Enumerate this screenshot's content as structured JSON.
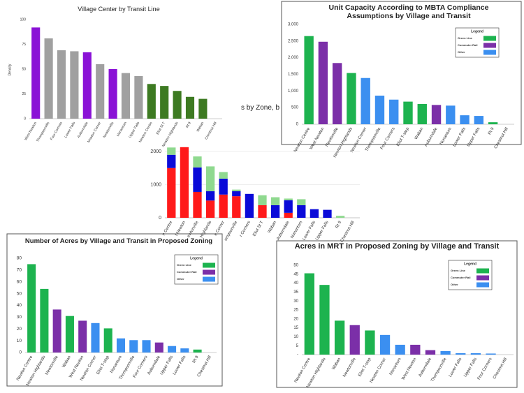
{
  "chart_data": [
    {
      "type": "bar",
      "title": "Village Center by Transit Line",
      "y_label": "Density",
      "categories": [
        "West Newton",
        "Thompsonville",
        "Four Corners",
        "Lower Falls",
        "Auburndale",
        "Newton Corner",
        "Newtonville",
        "Nonantum",
        "Upper Falls",
        "Newton Centre",
        "Eliot St T",
        "Newton Highlands",
        "Rt 9",
        "Waban",
        "Chestnut Hill"
      ],
      "values": [
        92,
        81,
        69,
        68,
        67,
        55,
        50,
        46,
        43,
        35,
        33,
        28,
        22,
        20,
        null
      ],
      "colors": [
        "#8a12d6",
        "#a0a0a0",
        "#a0a0a0",
        "#a0a0a0",
        "#8a12d6",
        "#a0a0a0",
        "#8a12d6",
        "#a0a0a0",
        "#a0a0a0",
        "#3d7a22",
        "#3d7a22",
        "#3d7a22",
        "#3d7a22",
        "#3d7a22",
        null
      ],
      "ylim": [
        0,
        100
      ],
      "yticks": [
        0,
        25,
        50,
        75,
        100
      ],
      "grid": false
    },
    {
      "type": "bar",
      "title": "Unit Capacity According to MBTA Compliance Assumptions by Village and Transit",
      "categories": [
        "Newton Centre",
        "West Newton",
        "Newtonville",
        "Newton Highlands",
        "Newton Corner",
        "Thompsonville",
        "Four Corners",
        "Eliot T-stop",
        "Waban",
        "Auburndale",
        "Nonantum",
        "Lower Falls",
        "Upper Falls",
        "Rt 9",
        "Chestnut Hill"
      ],
      "values": [
        2650,
        2480,
        1840,
        1540,
        1390,
        860,
        740,
        680,
        610,
        580,
        560,
        270,
        250,
        60,
        null
      ],
      "colors": [
        "#1db34f",
        "#7b2fa8",
        "#7b2fa8",
        "#1db34f",
        "#3b8ff0",
        "#3b8ff0",
        "#3b8ff0",
        "#1db34f",
        "#1db34f",
        "#7b2fa8",
        "#3b8ff0",
        "#3b8ff0",
        "#3b8ff0",
        "#1db34f",
        null
      ],
      "legend": {
        "title": "Legend",
        "items": [
          {
            "name": "Green Line",
            "color": "#1db34f"
          },
          {
            "name": "Commuter Rail",
            "color": "#7b2fa8"
          },
          {
            "name": "Other",
            "color": "#3b8ff0"
          }
        ]
      },
      "ylim": [
        0,
        3000
      ],
      "yticks": [
        0,
        {
          "value": 500,
          "label": "500"
        },
        {
          "value": 1000,
          "label": "1,000"
        },
        {
          "value": 1500,
          "label": "1,500"
        },
        {
          "value": 2000,
          "label": "2,000"
        },
        {
          "value": 2500,
          "label": "2,500"
        },
        {
          "value": 3000,
          "label": "3,000"
        }
      ],
      "grid": false
    },
    {
      "type": "stacked-bar",
      "title": "s by Zone, b",
      "categories": [
        "n Centre",
        "t Newton",
        "ewtonville",
        "Highlands",
        "e Corner",
        "ompsonville",
        "r Corners",
        "Eliot St T",
        "Waban",
        "Auburndale",
        "Nonantum",
        "Lower Falls",
        "Upper Falls",
        "Rt 9",
        "Chestnut Hill"
      ],
      "series": [
        {
          "color": "#ff1a1a",
          "values": [
            1500,
            2130,
            780,
            520,
            700,
            650,
            0,
            380,
            0,
            150,
            0,
            0,
            0,
            0,
            0
          ]
        },
        {
          "color": "#0a0ad8",
          "values": [
            400,
            0,
            740,
            280,
            480,
            150,
            720,
            0,
            380,
            380,
            380,
            260,
            240,
            0,
            0
          ]
        },
        {
          "color": "#8fd98f",
          "values": [
            220,
            0,
            330,
            750,
            200,
            50,
            0,
            300,
            240,
            50,
            180,
            0,
            0,
            60,
            0
          ]
        }
      ],
      "ylim": [
        0,
        2200
      ],
      "yticks": [
        0,
        1000,
        2000
      ],
      "grid": true
    },
    {
      "type": "bar",
      "title": "Number of Acres by Village and Transit in Proposed Zoning",
      "categories": [
        "Newton Centre",
        "Newton Highlands",
        "Newtonville",
        "Waban",
        "West Newton",
        "Newton Corner",
        "Eliot T-stop",
        "Nonantum",
        "Thompsonville",
        "Four Corners",
        "Auburndale",
        "Upper Falls",
        "Lower Falls",
        "Rt 9",
        "Chestnut Hill"
      ],
      "values": [
        75,
        54,
        36.5,
        31,
        27,
        25,
        20.5,
        12,
        10.5,
        10.5,
        8.5,
        5.5,
        3.5,
        2.5,
        null
      ],
      "colors": [
        "#1db34f",
        "#1db34f",
        "#7b2fa8",
        "#1db34f",
        "#7b2fa8",
        "#3b8ff0",
        "#1db34f",
        "#3b8ff0",
        "#3b8ff0",
        "#3b8ff0",
        "#7b2fa8",
        "#3b8ff0",
        "#3b8ff0",
        "#1db34f",
        null
      ],
      "legend": {
        "title": "Legend",
        "items": [
          {
            "name": "Green Line",
            "color": "#1db34f"
          },
          {
            "name": "Commuter Rail",
            "color": "#7b2fa8"
          },
          {
            "name": "Other",
            "color": "#3b8ff0"
          }
        ]
      },
      "ylim": [
        0,
        80
      ],
      "yticks": [
        0,
        10,
        20,
        30,
        40,
        50,
        60,
        70,
        80
      ],
      "grid": false
    },
    {
      "type": "bar",
      "title": "Acres in MRT in Proposed Zoning by Village and Transit",
      "categories": [
        "Newton Centre",
        "Newton Highlands",
        "Waban",
        "Newtonville",
        "Eliot T-stop",
        "Newton Corner",
        "Nonantum",
        "West Newton",
        "Auburndale",
        "Thompsonville",
        "Lower Falls",
        "Upper Falls",
        "Four Corners",
        "Chestnut Hill"
      ],
      "values": [
        45.5,
        39,
        19,
        16.5,
        13.5,
        11,
        5.5,
        5.5,
        2.5,
        2,
        0.8,
        0.8,
        0.6,
        null
      ],
      "colors": [
        "#1db34f",
        "#1db34f",
        "#1db34f",
        "#7b2fa8",
        "#1db34f",
        "#3b8ff0",
        "#3b8ff0",
        "#7b2fa8",
        "#7b2fa8",
        "#3b8ff0",
        "#3b8ff0",
        "#3b8ff0",
        "#3b8ff0",
        null
      ],
      "legend": {
        "title": "Legend",
        "items": [
          {
            "name": "Green Line",
            "color": "#1db34f"
          },
          {
            "name": "Commuter Rail",
            "color": "#7b2fa8"
          },
          {
            "name": "Other",
            "color": "#3b8ff0"
          }
        ]
      },
      "ylim": [
        0,
        50
      ],
      "yticks": [
        {
          "value": 0,
          "label": "-"
        },
        5,
        10,
        15,
        20,
        25,
        30,
        35,
        40,
        45,
        50
      ],
      "grid": false
    }
  ]
}
